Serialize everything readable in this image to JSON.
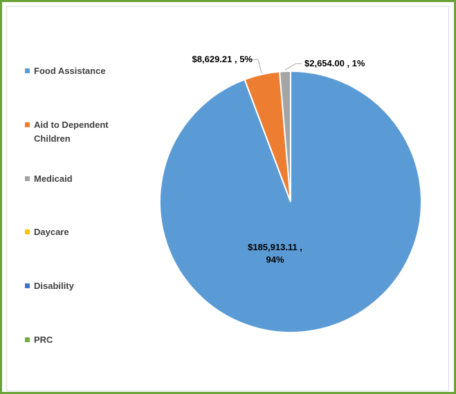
{
  "chart_data": {
    "type": "pie",
    "categories": [
      "Food Assistance",
      "Aid to Dependent Children",
      "Medicaid",
      "Daycare",
      "Disability",
      "PRC"
    ],
    "values": [
      185913.11,
      8629.21,
      2654.0,
      0,
      0,
      0
    ],
    "value_labels": [
      "$185,913.11 , 94%",
      "$8,629.21 , 5%",
      "$2,654.00 , 1%",
      null,
      null,
      null
    ],
    "colors": [
      "#5b9bd5",
      "#ed7d31",
      "#a5a5a5",
      "#ffc000",
      "#4472c4",
      "#70ad47"
    ],
    "legend": "left"
  }
}
